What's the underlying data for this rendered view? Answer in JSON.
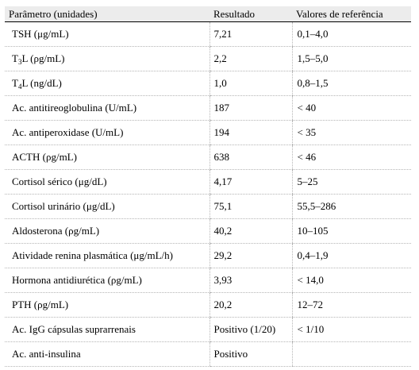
{
  "table": {
    "headers": [
      "Parâmetro (unidades)",
      "Resultado",
      "Valores de referência"
    ],
    "rows": [
      {
        "param": [
          "TSH (μg/mL)"
        ],
        "result": "7,21",
        "reference": "0,1–4,0"
      },
      {
        "param": [
          "T",
          "3",
          "L (ρg/mL)"
        ],
        "result": "2,2",
        "reference": "1,5–5,0"
      },
      {
        "param": [
          "T",
          "4",
          "L (ng/dL)"
        ],
        "result": "1,0",
        "reference": "0,8–1,5"
      },
      {
        "param": [
          "Ac. antitireoglobulina (U/mL)"
        ],
        "result": "187",
        "reference": "< 40"
      },
      {
        "param": [
          "Ac. antiperoxidase (U/mL)"
        ],
        "result": "194",
        "reference": "< 35"
      },
      {
        "param": [
          "ACTH (ρg/mL)"
        ],
        "result": "638",
        "reference": "< 46"
      },
      {
        "param": [
          "Cortisol sérico (μg/dL)"
        ],
        "result": "4,17",
        "reference": "5–25"
      },
      {
        "param": [
          "Cortisol urinário (μg/dL)"
        ],
        "result": "75,1",
        "reference": "55,5–286"
      },
      {
        "param": [
          "Aldosterona (ρg/mL)"
        ],
        "result": "40,2",
        "reference": "10–105"
      },
      {
        "param": [
          "Atividade renina plasmática (μg/mL/h)"
        ],
        "result": "29,2",
        "reference": "0,4–1,9"
      },
      {
        "param": [
          "Hormona antidiurética (ρg/mL)"
        ],
        "result": "3,93",
        "reference": "< 14,0"
      },
      {
        "param": [
          "PTH (ρg/mL)"
        ],
        "result": "20,2",
        "reference": "12–72"
      },
      {
        "param": [
          "Ac. IgG cápsulas suprarrenais"
        ],
        "result": "Positivo (1/20)",
        "reference": "< 1/10"
      },
      {
        "param": [
          "Ac. anti-insulina"
        ],
        "result": "Positivo",
        "reference": ""
      }
    ]
  }
}
